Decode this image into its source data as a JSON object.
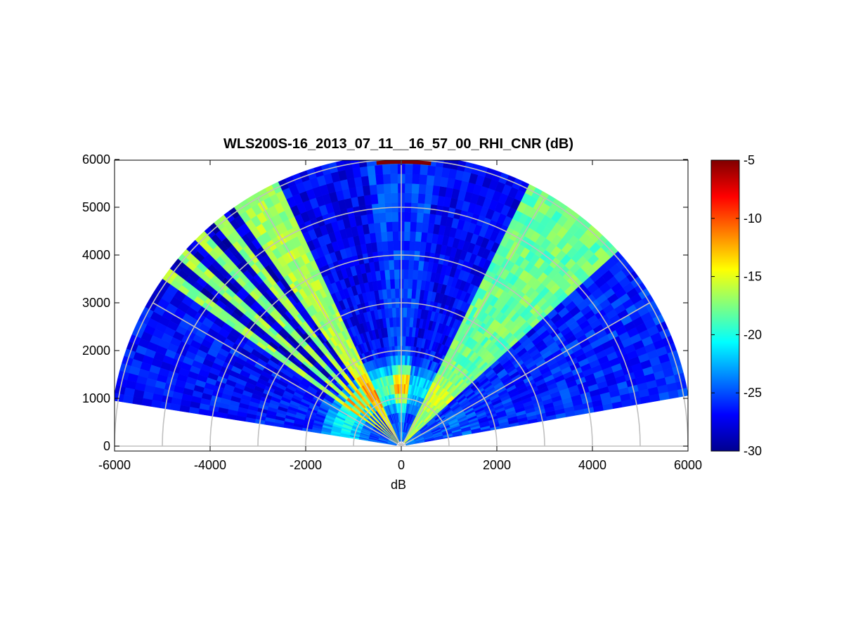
{
  "chart_data": {
    "type": "heatmap",
    "subtype": "polar-rhi-scan",
    "title": "WLS200S-16_2013_07_11__16_57_00_RHI_CNR (dB)",
    "xlabel": "dB",
    "ylabel": "",
    "xlim": [
      -6000,
      6000
    ],
    "ylim": [
      0,
      6000
    ],
    "xticks": [
      -6000,
      -4000,
      -2000,
      0,
      2000,
      4000,
      6000
    ],
    "yticks": [
      0,
      1000,
      2000,
      3000,
      4000,
      5000,
      6000
    ],
    "colormap": "jet",
    "colorbar": {
      "min": -30,
      "max": -5,
      "ticks": [
        -5,
        -10,
        -15,
        -20,
        -25,
        -30
      ]
    },
    "range_rings": [
      1000,
      2000,
      3000,
      4000,
      5000,
      6000
    ],
    "spokes_deg": [
      0,
      30,
      60,
      90,
      120,
      150,
      180
    ],
    "max_range": 6000,
    "gates": {
      "start": 100,
      "step": 200,
      "count": 30
    },
    "sectors": [
      {
        "az_start": 10,
        "az_end": 30,
        "base": -26,
        "ring_boost": 1.5
      },
      {
        "az_start": 30,
        "az_end": 37,
        "base": -26,
        "ring_boost": 1
      },
      {
        "az_start": 37,
        "az_end": 42,
        "base": -26.5,
        "ring_boost": 0.8
      },
      {
        "az_start": 42,
        "az_end": 64,
        "base": -18,
        "ring_boost": 2.5
      },
      {
        "az_start": 64,
        "az_end": 83,
        "base": -27,
        "ring_boost": 6
      },
      {
        "az_start": 83,
        "az_end": 97,
        "base": -25.5,
        "ring_boost": 13
      },
      {
        "az_start": 97,
        "az_end": 115,
        "base": -27,
        "ring_boost": 9
      },
      {
        "az_start": 115,
        "az_end": 125,
        "base": -16.5,
        "ring_boost": 5
      },
      {
        "az_start": 125,
        "az_end": 127.5,
        "base": -28,
        "ring_boost": 9
      },
      {
        "az_start": 127.5,
        "az_end": 130,
        "base": -17,
        "ring_boost": 5
      },
      {
        "az_start": 130,
        "az_end": 132.5,
        "base": -28,
        "ring_boost": 9
      },
      {
        "az_start": 132.5,
        "az_end": 135,
        "base": -17,
        "ring_boost": 5
      },
      {
        "az_start": 135,
        "az_end": 137.5,
        "base": -28,
        "ring_boost": 9
      },
      {
        "az_start": 137.5,
        "az_end": 140,
        "base": -17,
        "ring_boost": 5
      },
      {
        "az_start": 140,
        "az_end": 142.5,
        "base": -28,
        "ring_boost": 9
      },
      {
        "az_start": 142.5,
        "az_end": 145,
        "base": -17,
        "ring_boost": 5
      },
      {
        "az_start": 145,
        "az_end": 150,
        "base": -27,
        "ring_boost": 8
      },
      {
        "az_start": 150,
        "az_end": 171,
        "base": -26.5,
        "ring_boost": 6
      }
    ],
    "top_band": {
      "az_start": 84,
      "az_end": 95,
      "value": -5
    }
  }
}
